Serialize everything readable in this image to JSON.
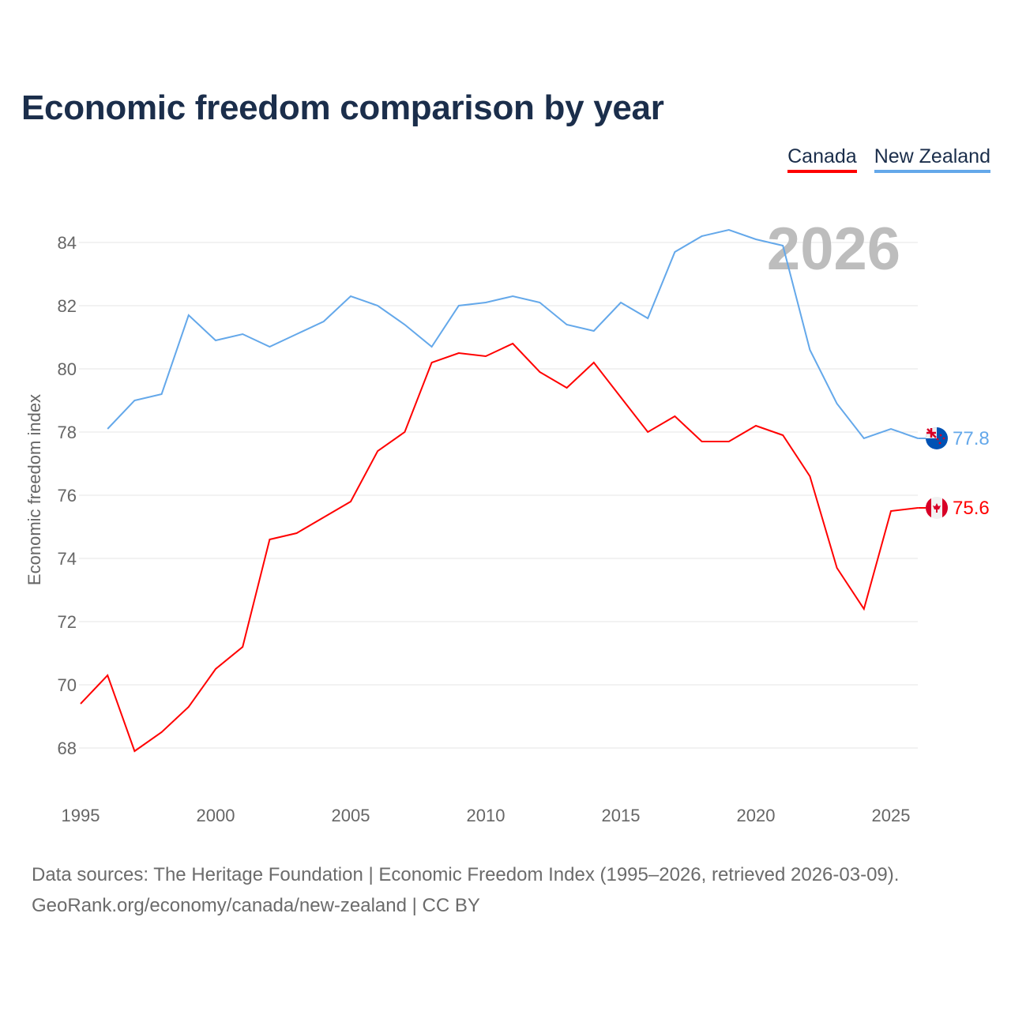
{
  "chart_data": {
    "type": "line",
    "title": "Economic freedom comparison by year",
    "xlabel": "",
    "ylabel": "Economic freedom index",
    "xlim": [
      1995,
      2026
    ],
    "ylim": [
      67,
      85.5
    ],
    "xticks": [
      1995,
      2000,
      2005,
      2010,
      2015,
      2020,
      2025
    ],
    "yticks": [
      68,
      70,
      72,
      74,
      76,
      78,
      80,
      82,
      84
    ],
    "grid": true,
    "legend_position": "top-right",
    "year_watermark": "2026",
    "series": [
      {
        "name": "Canada",
        "color": "#ff0000",
        "end_label": "75.6",
        "flag": "canada-flag",
        "x": [
          1995,
          1996,
          1997,
          1998,
          1999,
          2000,
          2001,
          2002,
          2003,
          2004,
          2005,
          2006,
          2007,
          2008,
          2009,
          2010,
          2011,
          2012,
          2013,
          2014,
          2015,
          2016,
          2017,
          2018,
          2019,
          2020,
          2021,
          2022,
          2023,
          2024,
          2025,
          2026
        ],
        "values": [
          69.4,
          70.3,
          67.9,
          68.5,
          69.3,
          70.5,
          71.2,
          74.6,
          74.8,
          75.3,
          75.8,
          77.4,
          78.0,
          80.2,
          80.5,
          80.4,
          80.8,
          79.9,
          79.4,
          80.2,
          79.1,
          78.0,
          78.5,
          77.7,
          77.7,
          78.2,
          77.9,
          76.6,
          73.7,
          72.4,
          75.5,
          75.6
        ]
      },
      {
        "name": "New Zealand",
        "color": "#64a8ea",
        "end_label": "77.8",
        "flag": "new-zealand-flag",
        "x": [
          1996,
          1997,
          1998,
          1999,
          2000,
          2001,
          2002,
          2003,
          2004,
          2005,
          2006,
          2007,
          2008,
          2009,
          2010,
          2011,
          2012,
          2013,
          2014,
          2015,
          2016,
          2017,
          2018,
          2019,
          2020,
          2021,
          2022,
          2023,
          2024,
          2025,
          2026
        ],
        "values": [
          78.1,
          79.0,
          79.2,
          81.7,
          80.9,
          81.1,
          80.7,
          81.1,
          81.5,
          82.3,
          82.0,
          81.4,
          80.7,
          82.0,
          82.1,
          82.3,
          82.1,
          81.4,
          81.2,
          82.1,
          81.6,
          83.7,
          84.2,
          84.4,
          84.1,
          83.9,
          80.6,
          78.9,
          77.8,
          78.1,
          77.8
        ]
      }
    ]
  },
  "source": {
    "line1": "Data sources: The Heritage Foundation | Economic Freedom Index (1995–2026, retrieved 2026-03-09).",
    "line2": "GeoRank.org/economy/canada/new-zealand | CC BY"
  }
}
